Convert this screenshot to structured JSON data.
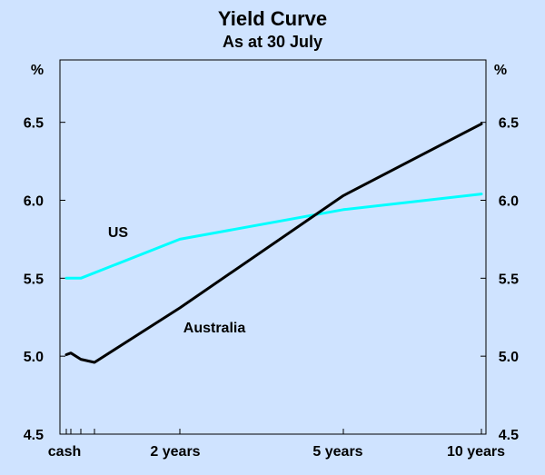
{
  "chart_data": {
    "type": "line",
    "title": "Yield Curve",
    "subtitle": "As at 30 July",
    "y_unit_left": "%",
    "y_unit_right": "%",
    "ylim": [
      4.5,
      6.9
    ],
    "yticks": [
      "4.5",
      "5.0",
      "5.5",
      "6.0",
      "6.5"
    ],
    "x_categories": [
      "cash",
      "2 years",
      "5 years",
      "10 years"
    ],
    "grid": false,
    "series": [
      {
        "name": "US",
        "color": "#00ffff",
        "points": [
          {
            "x": "cash",
            "y": 5.5
          },
          {
            "x": "3 months",
            "y": 5.5
          },
          {
            "x": "2 years",
            "y": 5.75
          },
          {
            "x": "5 years",
            "y": 5.94
          },
          {
            "x": "10 years",
            "y": 6.04
          }
        ]
      },
      {
        "name": "Australia",
        "color": "#000000",
        "points": [
          {
            "x": "cash",
            "y": 5.01
          },
          {
            "x": "1 month",
            "y": 5.02
          },
          {
            "x": "3 months",
            "y": 4.98
          },
          {
            "x": "6 months",
            "y": 4.96
          },
          {
            "x": "2 years",
            "y": 5.31
          },
          {
            "x": "5 years",
            "y": 6.03
          },
          {
            "x": "10 years",
            "y": 6.49
          }
        ]
      }
    ]
  }
}
